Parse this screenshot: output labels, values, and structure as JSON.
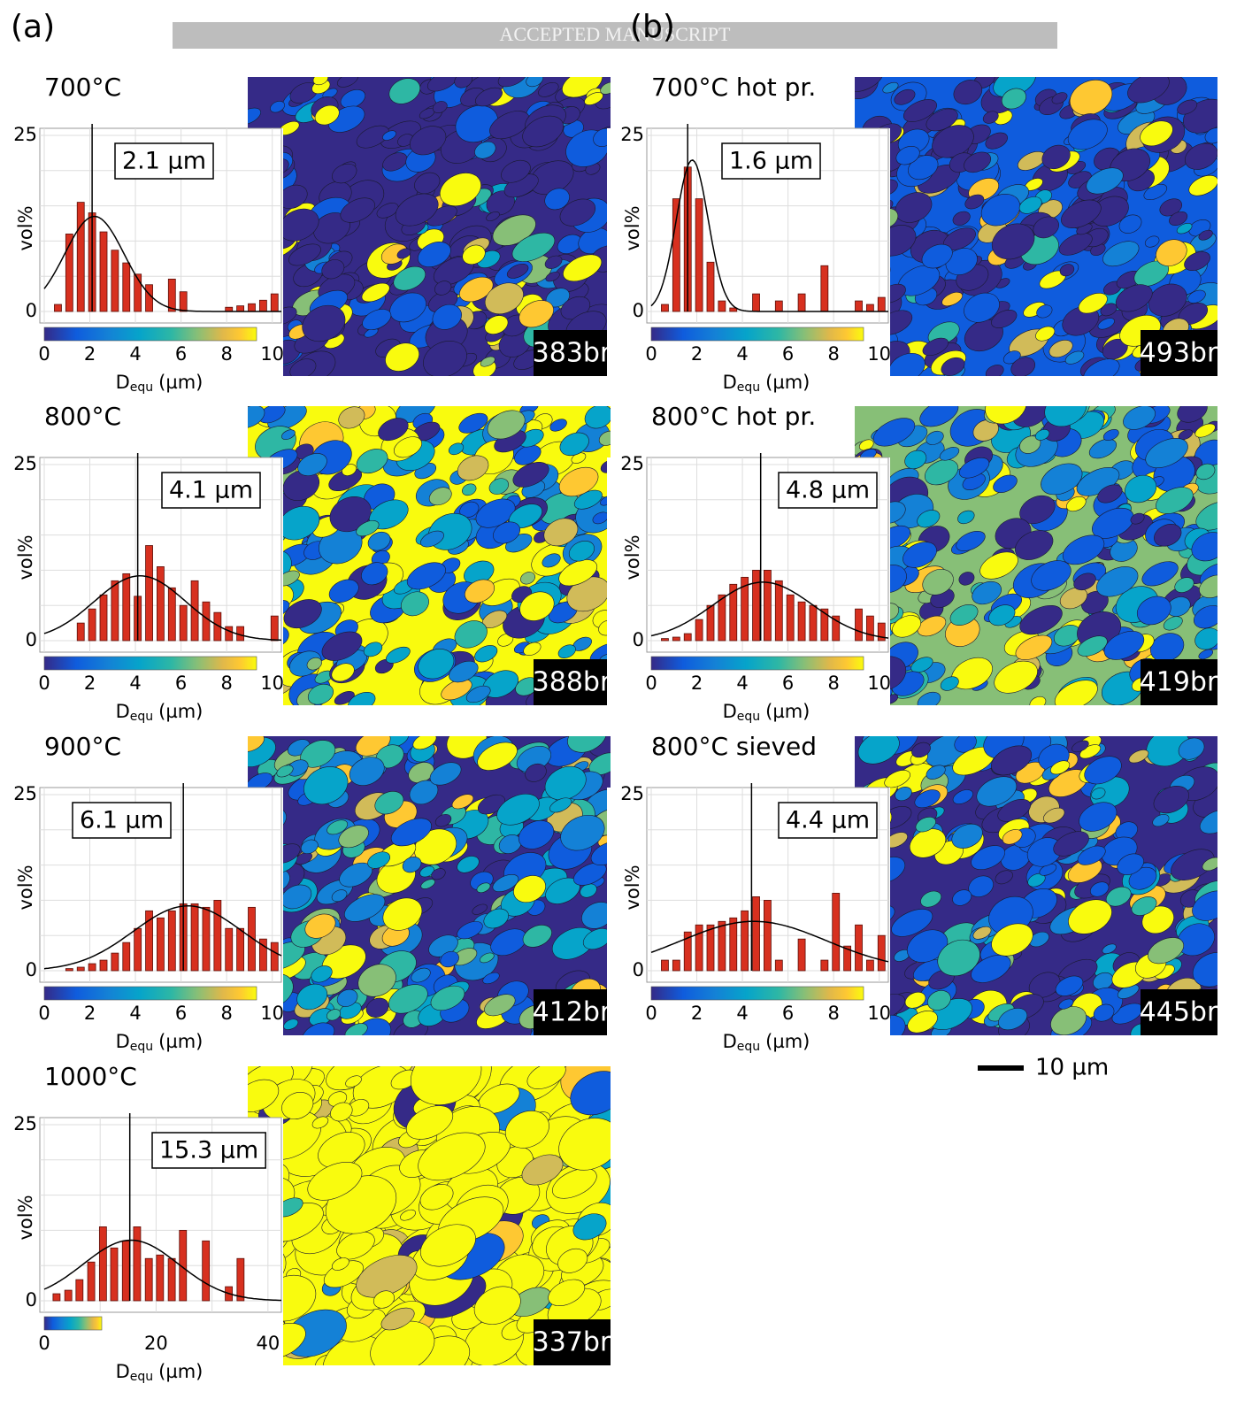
{
  "panel_labels": [
    "(a)",
    "(b)"
  ],
  "watermark": "ACCEPTED MANUSCRIPT",
  "scale_bar": "10 µm",
  "chart_data": [
    {
      "type": "bar",
      "title": "700°C",
      "map_label": "383br",
      "y_label": "vol%",
      "x_label": [
        "D",
        "equ",
        "(µm)"
      ],
      "color": "#d7301f",
      "x": [
        0.6,
        1.1,
        1.6,
        2.1,
        2.6,
        3.1,
        3.6,
        4.1,
        4.6,
        5.1,
        5.6,
        6.1,
        6.6,
        7.1,
        7.6,
        8.1,
        8.6,
        9.1,
        9.6,
        10.1
      ],
      "values": [
        1,
        11,
        15.5,
        14,
        11.3,
        8.7,
        6.9,
        5.3,
        3.8,
        0,
        4.6,
        2.8,
        0,
        0,
        0,
        0.6,
        0.8,
        1.1,
        1.6,
        2.5
      ],
      "marker": {
        "value": 2.1,
        "label": "2.1 µm"
      },
      "fit": {
        "center": 2.2,
        "sigma": 1.3,
        "peak": 13.5
      },
      "xlim": [
        0,
        10.4
      ],
      "ylim": [
        0,
        26
      ],
      "xticks": [
        0,
        2,
        4,
        6,
        8,
        10
      ],
      "yticks": [
        0,
        25
      ],
      "grid_x": [
        0,
        2,
        4,
        6,
        8,
        10
      ],
      "grid_y": [
        0,
        5,
        10,
        15,
        20,
        25
      ]
    },
    {
      "type": "bar",
      "title": "800°C",
      "map_label": "388br",
      "y_label": "vol%",
      "x_label": [
        "D",
        "equ",
        "(µm)"
      ],
      "color": "#d7301f",
      "x": [
        0.6,
        1.1,
        1.6,
        2.1,
        2.6,
        3.1,
        3.6,
        4.1,
        4.6,
        5.1,
        5.6,
        6.1,
        6.6,
        7.1,
        7.6,
        8.1,
        8.6,
        9.1,
        9.6,
        10.1
      ],
      "values": [
        0,
        0,
        2.5,
        4.5,
        6.5,
        8.5,
        9.5,
        6.3,
        13.5,
        10.5,
        7.5,
        5,
        8.5,
        5.5,
        4,
        2,
        2,
        0,
        0,
        3.5
      ],
      "marker": {
        "value": 4.1,
        "label": "4.1 µm"
      },
      "fit": {
        "center": 4.2,
        "sigma": 2,
        "peak": 9.2
      },
      "xlim": [
        0,
        10.4
      ],
      "ylim": [
        0,
        26
      ],
      "xticks": [
        0,
        2,
        4,
        6,
        8,
        10
      ],
      "yticks": [
        0,
        25
      ],
      "grid_x": [
        0,
        2,
        4,
        6,
        8,
        10
      ],
      "grid_y": [
        0,
        5,
        10,
        15,
        20,
        25
      ]
    },
    {
      "type": "bar",
      "title": "900°C",
      "map_label": "412br",
      "y_label": "vol%",
      "x_label": [
        "D",
        "equ",
        "(µm)"
      ],
      "color": "#d7301f",
      "x": [
        0.6,
        1.1,
        1.6,
        2.1,
        2.6,
        3.1,
        3.6,
        4.1,
        4.6,
        5.1,
        5.6,
        6.1,
        6.6,
        7.1,
        7.6,
        8.1,
        8.6,
        9.1,
        9.6,
        10.1
      ],
      "values": [
        0,
        0.3,
        0.5,
        1,
        1.5,
        2.5,
        4,
        6,
        8.5,
        7.5,
        8.5,
        9.5,
        9.5,
        9,
        10,
        6,
        6,
        9,
        4.5,
        4
      ],
      "marker": {
        "value": 6.1,
        "label": "6.1 µm"
      },
      "fit": {
        "center": 6.3,
        "sigma": 2.4,
        "peak": 9.2
      },
      "xlim": [
        0,
        10.4
      ],
      "ylim": [
        0,
        26
      ],
      "xticks": [
        0,
        2,
        4,
        6,
        8,
        10
      ],
      "yticks": [
        0,
        25
      ],
      "grid_x": [
        0,
        2,
        4,
        6,
        8,
        10
      ],
      "grid_y": [
        0,
        5,
        10,
        15,
        20,
        25
      ]
    },
    {
      "type": "bar",
      "title": "1000°C",
      "map_label": "337br",
      "y_label": "vol%",
      "x_label": [
        "D",
        "equ",
        "(µm)"
      ],
      "color": "#d7301f",
      "x": [
        2.2,
        4.3,
        6.3,
        8.4,
        10.5,
        12.5,
        14.6,
        16.6,
        18.7,
        20.7,
        22.8,
        24.8,
        26.9,
        28.9,
        31,
        33,
        35.1,
        37.1
      ],
      "values": [
        1,
        1.5,
        3,
        5.5,
        10.5,
        7.5,
        8.5,
        10.5,
        6,
        6.5,
        6,
        10,
        0,
        8.5,
        0,
        2,
        6,
        0
      ],
      "marker": {
        "value": 15.3,
        "label": "15.3 µm"
      },
      "fit": {
        "center": 15.5,
        "sigma": 8.5,
        "peak": 8.6
      },
      "xlim": [
        0,
        42.4
      ],
      "ylim": [
        0,
        26
      ],
      "xticks": [
        0,
        20,
        40
      ],
      "yticks": [
        0,
        25
      ],
      "grid_x": [
        0,
        10,
        20,
        30,
        40
      ],
      "grid_y": [
        0,
        5,
        10,
        15,
        20,
        25
      ]
    },
    {
      "type": "bar",
      "title": "700°C hot pr.",
      "map_label": "493br",
      "y_label": "vol%",
      "x_label": [
        "D",
        "equ",
        "(µm)"
      ],
      "color": "#d7301f",
      "x": [
        0.6,
        1.1,
        1.6,
        2.1,
        2.6,
        3.1,
        3.6,
        4.1,
        4.6,
        5.1,
        5.6,
        6.1,
        6.6,
        7.1,
        7.6,
        8.1,
        8.6,
        9.1,
        9.6,
        10.1
      ],
      "values": [
        1,
        16,
        20.5,
        16,
        7,
        1.5,
        0.5,
        0,
        2.5,
        0,
        1.5,
        0,
        2.5,
        0,
        6.5,
        0,
        0,
        1.5,
        1,
        2
      ],
      "marker": {
        "value": 1.6,
        "label": "1.6 µm"
      },
      "fit": {
        "center": 1.8,
        "sigma": 0.7,
        "peak": 21.5
      },
      "xlim": [
        0,
        10.4
      ],
      "ylim": [
        0,
        26
      ],
      "xticks": [
        0,
        2,
        4,
        6,
        8,
        10
      ],
      "yticks": [
        0,
        25
      ],
      "grid_x": [
        0,
        2,
        4,
        6,
        8,
        10
      ],
      "grid_y": [
        0,
        5,
        10,
        15,
        20,
        25
      ]
    },
    {
      "type": "bar",
      "title": "800°C hot pr.",
      "map_label": "419br",
      "y_label": "vol%",
      "x_label": [
        "D",
        "equ",
        "(µm)"
      ],
      "color": "#d7301f",
      "x": [
        0.6,
        1.1,
        1.6,
        2.1,
        2.6,
        3.1,
        3.6,
        4.1,
        4.6,
        5.1,
        5.6,
        6.1,
        6.6,
        7.1,
        7.6,
        8.1,
        8.6,
        9.1,
        9.6,
        10.1
      ],
      "values": [
        0.3,
        0.5,
        1,
        3,
        5,
        6.5,
        8,
        9,
        10,
        10,
        8.5,
        6.5,
        5.5,
        5,
        4.5,
        3.5,
        0,
        4.5,
        3.5,
        2.5
      ],
      "marker": {
        "value": 4.8,
        "label": "4.8 µm"
      },
      "fit": {
        "center": 4.9,
        "sigma": 2.2,
        "peak": 8.3
      },
      "xlim": [
        0,
        10.4
      ],
      "ylim": [
        0,
        26
      ],
      "xticks": [
        0,
        2,
        4,
        6,
        8,
        10
      ],
      "yticks": [
        0,
        25
      ],
      "grid_x": [
        0,
        2,
        4,
        6,
        8,
        10
      ],
      "grid_y": [
        0,
        5,
        10,
        15,
        20,
        25
      ]
    },
    {
      "type": "bar",
      "title": "800°C sieved",
      "map_label": "445br",
      "y_label": "vol%",
      "x_label": [
        "D",
        "equ",
        "(µm)"
      ],
      "color": "#d7301f",
      "x": [
        0.6,
        1.1,
        1.6,
        2.1,
        2.6,
        3.1,
        3.6,
        4.1,
        4.6,
        5.1,
        5.6,
        6.1,
        6.6,
        7.1,
        7.6,
        8.1,
        8.6,
        9.1,
        9.6,
        10.1
      ],
      "values": [
        1.5,
        1.5,
        5.5,
        6.5,
        6.5,
        7,
        7.5,
        8.5,
        10.5,
        10,
        1.5,
        0,
        4.5,
        0,
        1.5,
        11,
        3.5,
        6.5,
        1.5,
        5
      ],
      "marker": {
        "value": 4.4,
        "label": "4.4 µm"
      },
      "fit": {
        "center": 4.5,
        "sigma": 3.2,
        "peak": 7
      },
      "xlim": [
        0,
        10.4
      ],
      "ylim": [
        0,
        26
      ],
      "xticks": [
        0,
        2,
        4,
        6,
        8,
        10
      ],
      "yticks": [
        0,
        25
      ],
      "grid_x": [
        0,
        2,
        4,
        6,
        8,
        10
      ],
      "grid_y": [
        0,
        5,
        10,
        15,
        20,
        25
      ]
    }
  ]
}
